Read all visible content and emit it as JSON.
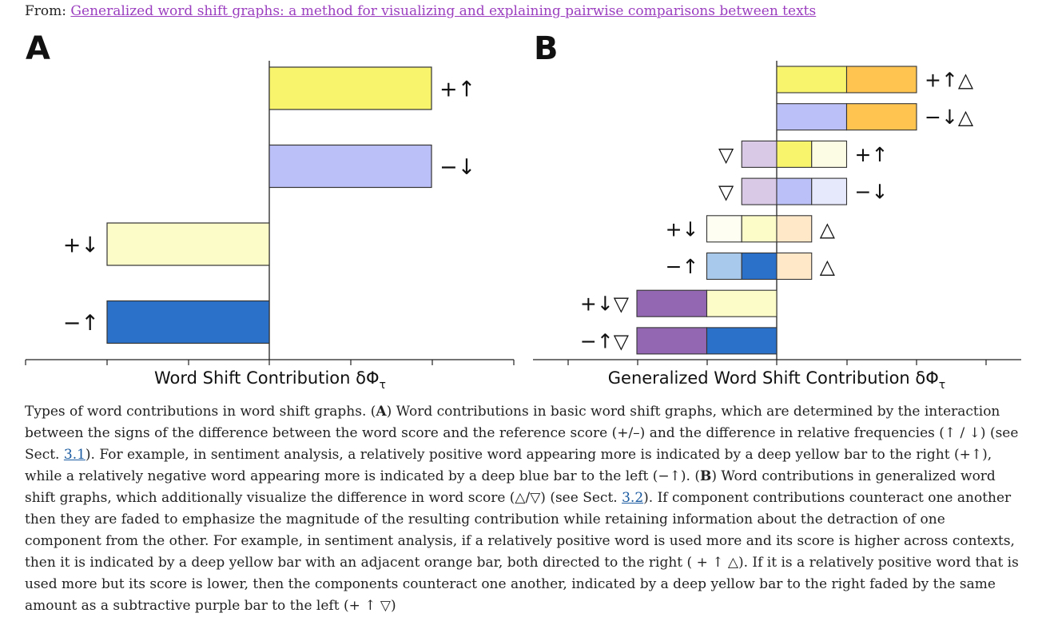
{
  "header": {
    "from_prefix": "From:",
    "article_link": "Generalized word shift graphs: a method for visualizing and explaining pairwise comparisons between texts"
  },
  "figure": {
    "panel_a": {
      "letter": "A",
      "xlabel": "Word Shift Contribution δΦ",
      "xlabel_sub": "τ",
      "bars": [
        {
          "label": "+↑",
          "value": 1.0,
          "color": "#f8f56d"
        },
        {
          "label": "−↓",
          "value": 1.0,
          "color": "#bcc0f8"
        },
        {
          "label": "+↓",
          "value": -1.0,
          "color": "#fcfcc8"
        },
        {
          "label": "−↑",
          "value": -1.0,
          "color": "#2b70c9"
        }
      ]
    },
    "panel_b": {
      "letter": "B",
      "xlabel": "Generalized Word Shift Contribution δΦ",
      "xlabel_sub": "τ",
      "rows": [
        {
          "left_label": "",
          "right_label": "+↑△",
          "segments": [
            {
              "from": 0,
              "to": 1,
              "color": "#f8f56d"
            },
            {
              "from": 1,
              "to": 2,
              "color": "#fec44f"
            }
          ]
        },
        {
          "left_label": "",
          "right_label": "−↓△",
          "segments": [
            {
              "from": 0,
              "to": 1,
              "color": "#bcc0f8"
            },
            {
              "from": 1,
              "to": 2,
              "color": "#fec44f"
            }
          ]
        },
        {
          "left_label": "▽",
          "right_label": "+↑",
          "segments": [
            {
              "from": -0.5,
              "to": 0,
              "color": "#d9c8e6"
            },
            {
              "from": 0,
              "to": 0.5,
              "color": "#f8f56d"
            },
            {
              "from": 0.5,
              "to": 1,
              "color": "#fcfce4"
            }
          ]
        },
        {
          "left_label": "▽",
          "right_label": "−↓",
          "segments": [
            {
              "from": -0.5,
              "to": 0,
              "color": "#d9c8e6"
            },
            {
              "from": 0,
              "to": 0.5,
              "color": "#bcc0f8"
            },
            {
              "from": 0.5,
              "to": 1,
              "color": "#e6e8fc"
            }
          ]
        },
        {
          "left_label": "+↓",
          "right_label": "△",
          "segments": [
            {
              "from": -1,
              "to": -0.5,
              "color": "#fefef2"
            },
            {
              "from": -0.5,
              "to": 0,
              "color": "#fcfcc8"
            },
            {
              "from": 0,
              "to": 0.5,
              "color": "#fee8c8"
            }
          ]
        },
        {
          "left_label": "−↑",
          "right_label": "△",
          "segments": [
            {
              "from": -1,
              "to": -0.5,
              "color": "#a9c9ec"
            },
            {
              "from": -0.5,
              "to": 0,
              "color": "#2b70c9"
            },
            {
              "from": 0,
              "to": 0.5,
              "color": "#fee8c8"
            }
          ]
        },
        {
          "left_label": "+↓▽",
          "right_label": "",
          "segments": [
            {
              "from": -2,
              "to": -1,
              "color": "#9467b3"
            },
            {
              "from": -1,
              "to": 0,
              "color": "#fcfcc8"
            }
          ]
        },
        {
          "left_label": "−↑▽",
          "right_label": "",
          "segments": [
            {
              "from": -2,
              "to": -1,
              "color": "#9467b3"
            },
            {
              "from": -1,
              "to": 0,
              "color": "#2b70c9"
            }
          ]
        }
      ]
    }
  },
  "caption": {
    "intro": "Types of word contributions in word shift graphs. (",
    "a_letter": "A",
    "a_text": ") Word contributions in basic word shift graphs, which are determined by the interaction between the signs of the difference between the word score and the reference score (+/–) and the difference in relative frequencies (↑ / ↓) (see Sect. ",
    "ref1": "3.1",
    "a_text2": "). For example, in sentiment analysis, a relatively positive word appearing more is indicated by a deep yellow bar to the right (+↑), while a relatively negative word appearing more is indicated by a deep blue bar to the left (−↑). (",
    "b_letter": "B",
    "b_text": ") Word contributions in generalized word shift graphs, which additionally visualize the difference in word score (△/▽) (see Sect. ",
    "ref2": "3.2",
    "b_text2": "). If component contributions counteract one another then they are faded to emphasize the magnitude of the resulting contribution while retaining information about the detraction of one component from the other. For example, in sentiment analysis, if a relatively positive word is used more and its score is higher across contexts, then it is indicated by a deep yellow bar with an adjacent orange bar, both directed to the right ( + ↑ △). If it is a relatively positive word that is used more but its score is lower, then the components counteract one another, indicated by a deep yellow bar to the right faded by the same amount as a subtractive purple bar to the left (+ ↑ ▽)"
  }
}
